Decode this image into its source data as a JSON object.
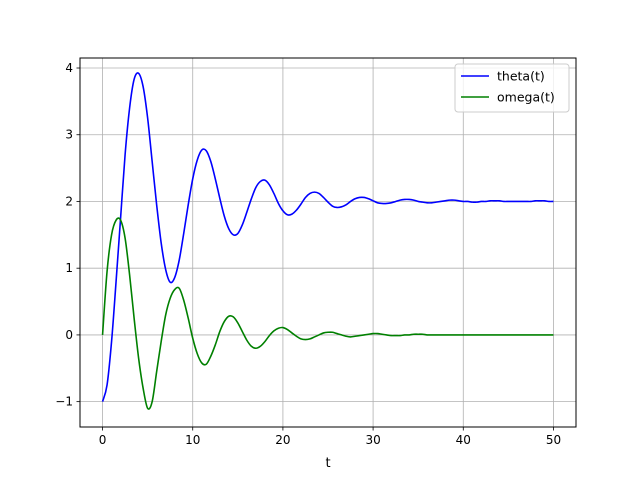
{
  "chart_data": {
    "type": "line",
    "title": "",
    "xlabel": "t",
    "ylabel": "",
    "xlim": [
      -2.5,
      52.5
    ],
    "ylim": [
      -1.38,
      4.15
    ],
    "xticks": [
      0,
      10,
      20,
      30,
      40,
      50
    ],
    "yticks": [
      -1,
      0,
      1,
      2,
      3,
      4
    ],
    "xtick_labels": [
      "0",
      "10",
      "20",
      "30",
      "40",
      "50"
    ],
    "ytick_labels": [
      "−1",
      "0",
      "1",
      "2",
      "3",
      "4"
    ],
    "grid": true,
    "legend_position": "top-right",
    "series": [
      {
        "name": "theta(t)",
        "color": "#0000ff",
        "x": [
          0,
          0.5,
          1,
          1.5,
          2,
          2.5,
          3,
          3.5,
          4,
          4.5,
          5,
          5.5,
          6,
          6.5,
          7,
          7.5,
          8,
          8.5,
          9,
          9.5,
          10,
          10.5,
          11,
          11.5,
          12,
          12.5,
          13,
          13.5,
          14,
          14.5,
          15,
          15.5,
          16,
          16.5,
          17,
          17.5,
          18,
          18.5,
          19,
          19.5,
          20,
          20.5,
          21,
          21.5,
          22,
          22.5,
          23,
          23.5,
          24,
          24.5,
          25,
          25.5,
          26,
          26.5,
          27,
          27.5,
          28,
          28.5,
          29,
          29.5,
          30,
          30.5,
          31,
          31.5,
          32,
          32.5,
          33,
          33.5,
          34,
          34.5,
          35,
          35.5,
          36,
          36.5,
          37,
          37.5,
          38,
          38.5,
          39,
          39.5,
          40,
          40.5,
          41,
          41.5,
          42,
          42.5,
          43,
          43.5,
          44,
          44.5,
          45,
          45.5,
          46,
          46.5,
          47,
          47.5,
          48,
          48.5,
          49,
          49.5,
          50
        ],
        "y": [
          -1.0,
          -0.75,
          -0.1,
          0.8,
          1.75,
          2.7,
          3.4,
          3.83,
          3.92,
          3.72,
          3.25,
          2.6,
          1.95,
          1.38,
          0.98,
          0.79,
          0.86,
          1.12,
          1.52,
          1.95,
          2.34,
          2.62,
          2.77,
          2.76,
          2.6,
          2.34,
          2.05,
          1.78,
          1.59,
          1.5,
          1.52,
          1.65,
          1.84,
          2.04,
          2.21,
          2.3,
          2.32,
          2.25,
          2.12,
          1.97,
          1.86,
          1.8,
          1.81,
          1.87,
          1.96,
          2.06,
          2.12,
          2.14,
          2.12,
          2.06,
          1.99,
          1.93,
          1.91,
          1.92,
          1.95,
          2.0,
          2.04,
          2.06,
          2.06,
          2.04,
          2.01,
          1.98,
          1.97,
          1.97,
          1.98,
          2.0,
          2.02,
          2.03,
          2.03,
          2.02,
          2.0,
          1.99,
          1.98,
          1.98,
          1.99,
          2.0,
          2.01,
          2.02,
          2.02,
          2.01,
          2.0,
          2.0,
          1.99,
          1.99,
          2.0,
          2.0,
          2.01,
          2.01,
          2.01,
          2.0,
          2.0,
          2.0,
          2.0,
          2.0,
          2.0,
          2.0,
          2.01,
          2.01,
          2.01,
          2.0,
          2.0
        ]
      },
      {
        "name": "omega(t)",
        "color": "#008000",
        "x": [
          0,
          0.5,
          1,
          1.5,
          2,
          2.5,
          3,
          3.5,
          4,
          4.5,
          5,
          5.5,
          6,
          6.5,
          7,
          7.5,
          8,
          8.5,
          9,
          9.5,
          10,
          10.5,
          11,
          11.5,
          12,
          12.5,
          13,
          13.5,
          14,
          14.5,
          15,
          15.5,
          16,
          16.5,
          17,
          17.5,
          18,
          18.5,
          19,
          19.5,
          20,
          20.5,
          21,
          21.5,
          22,
          22.5,
          23,
          23.5,
          24,
          24.5,
          25,
          25.5,
          26,
          26.5,
          27,
          27.5,
          28,
          28.5,
          29,
          29.5,
          30,
          30.5,
          31,
          31.5,
          32,
          32.5,
          33,
          33.5,
          34,
          34.5,
          35,
          35.5,
          36,
          36.5,
          37,
          37.5,
          38,
          38.5,
          39,
          39.5,
          40,
          40.5,
          41,
          41.5,
          42,
          42.5,
          43,
          43.5,
          44,
          44.5,
          45,
          45.5,
          46,
          46.5,
          47,
          47.5,
          48,
          48.5,
          49,
          49.5,
          50
        ],
        "y": [
          0.0,
          0.95,
          1.5,
          1.72,
          1.72,
          1.45,
          0.9,
          0.25,
          -0.35,
          -0.8,
          -1.1,
          -1.0,
          -0.55,
          -0.1,
          0.3,
          0.55,
          0.68,
          0.7,
          0.52,
          0.25,
          -0.05,
          -0.28,
          -0.42,
          -0.44,
          -0.32,
          -0.15,
          0.05,
          0.2,
          0.28,
          0.27,
          0.18,
          0.05,
          -0.08,
          -0.17,
          -0.2,
          -0.17,
          -0.1,
          -0.01,
          0.06,
          0.1,
          0.11,
          0.08,
          0.03,
          -0.02,
          -0.06,
          -0.07,
          -0.06,
          -0.03,
          0.0,
          0.03,
          0.04,
          0.04,
          0.02,
          0.0,
          -0.02,
          -0.03,
          -0.02,
          -0.01,
          0.0,
          0.01,
          0.02,
          0.02,
          0.01,
          0.0,
          -0.01,
          -0.01,
          -0.01,
          0.0,
          0.0,
          0.01,
          0.01,
          0.01,
          0.0,
          0.0,
          0.0,
          0.0,
          0.0,
          0.0,
          0.0,
          0.0,
          0.0,
          0.0,
          0.0,
          0.0,
          0.0,
          0.0,
          0.0,
          0.0,
          0.0,
          0.0,
          0.0,
          0.0,
          0.0,
          0.0,
          0.0,
          0.0,
          0.0,
          0.0,
          0.0,
          0.0,
          0.0
        ]
      }
    ]
  }
}
